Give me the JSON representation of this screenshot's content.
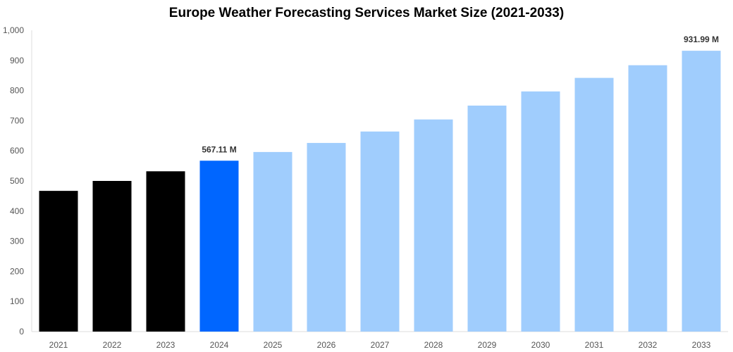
{
  "chart_data": {
    "type": "bar",
    "title": "Europe Weather Forecasting Services Market Size (2021-2033)",
    "xlabel": "",
    "ylabel": "",
    "categories": [
      "2021",
      "2022",
      "2023",
      "2024",
      "2025",
      "2026",
      "2027",
      "2028",
      "2029",
      "2030",
      "2031",
      "2032",
      "2033"
    ],
    "values": [
      467,
      500,
      532,
      567.11,
      596,
      626,
      664,
      704,
      750,
      797,
      842,
      884,
      931.99
    ],
    "data_labels": {
      "3": "567.11 M",
      "12": "931.99 M"
    },
    "ylim": [
      0,
      1000
    ],
    "yticks": [
      0,
      100,
      200,
      300,
      400,
      500,
      600,
      700,
      800,
      900,
      1000
    ],
    "ytick_labels": [
      "0",
      "100",
      "200",
      "300",
      "400",
      "500",
      "600",
      "700",
      "800",
      "900",
      "1,000"
    ],
    "grid": false,
    "legend": "none",
    "colors": {
      "historical": "#000000",
      "base_year": "#0066ff",
      "forecast": "#a0cdfd"
    },
    "bar_color_groups": [
      "historical",
      "historical",
      "historical",
      "base_year",
      "forecast",
      "forecast",
      "forecast",
      "forecast",
      "forecast",
      "forecast",
      "forecast",
      "forecast",
      "forecast"
    ]
  }
}
